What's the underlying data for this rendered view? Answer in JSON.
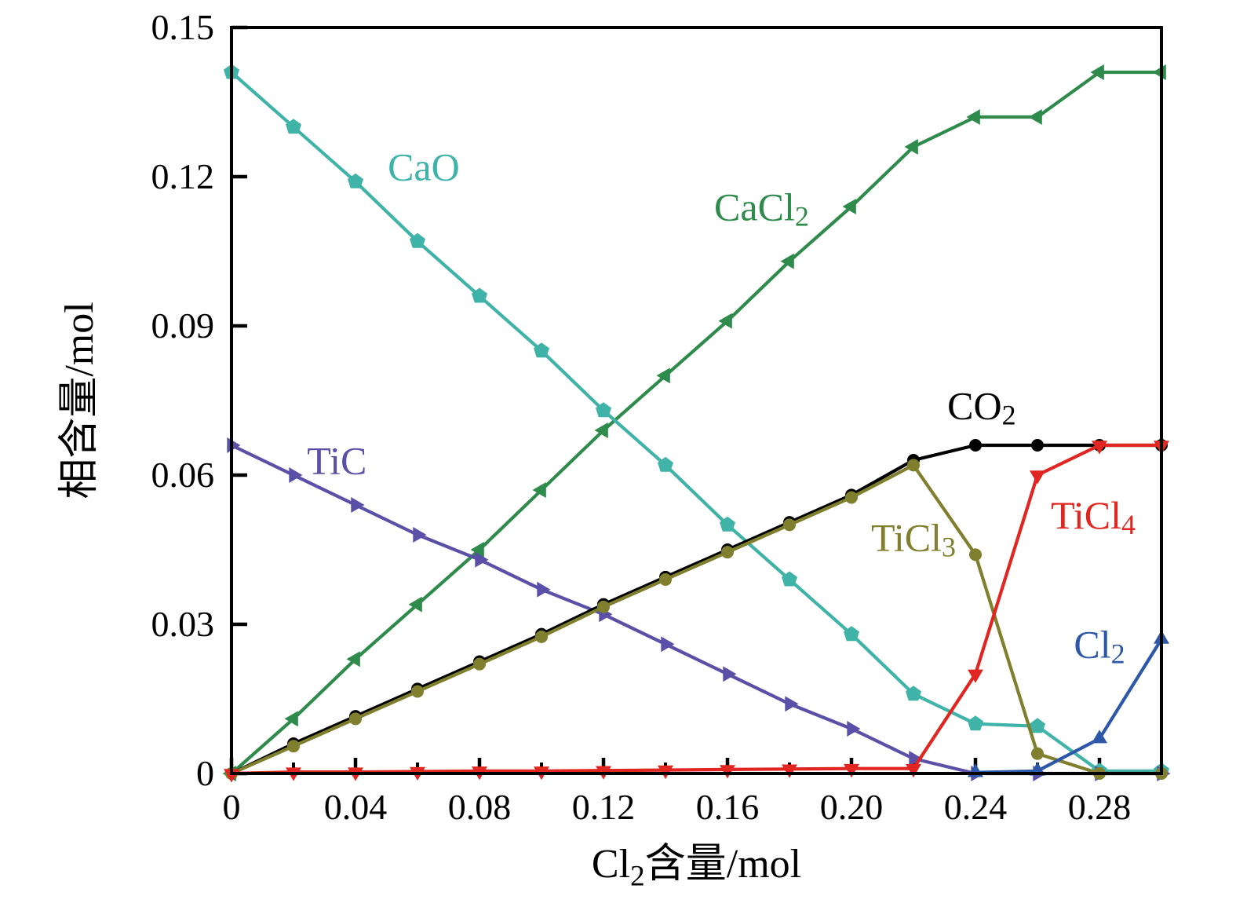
{
  "chart_data": {
    "type": "line",
    "title": "",
    "xlabel_parts": [
      {
        "t": "Cl"
      },
      {
        "t": "2",
        "sub": true
      },
      {
        "t": "含量/mol"
      }
    ],
    "ylabel": "相含量/mol",
    "xlim": [
      0,
      0.3
    ],
    "ylim": [
      0,
      0.15
    ],
    "grid": false,
    "legend": "inline-annotations",
    "x_ticks": [
      {
        "v": 0.0,
        "label": "0"
      },
      {
        "v": 0.04,
        "label": "0.04"
      },
      {
        "v": 0.08,
        "label": "0.08"
      },
      {
        "v": 0.12,
        "label": "0.12"
      },
      {
        "v": 0.16,
        "label": "0.16"
      },
      {
        "v": 0.2,
        "label": "0.20"
      },
      {
        "v": 0.24,
        "label": "0.24"
      },
      {
        "v": 0.28,
        "label": "0.28"
      }
    ],
    "x_minor_ticks": [
      0.02,
      0.06,
      0.1,
      0.14,
      0.18,
      0.22,
      0.26,
      0.3
    ],
    "y_ticks": [
      {
        "v": 0.0,
        "label": "0"
      },
      {
        "v": 0.03,
        "label": "0.03"
      },
      {
        "v": 0.06,
        "label": "0.06"
      },
      {
        "v": 0.09,
        "label": "0.09"
      },
      {
        "v": 0.12,
        "label": "0.12"
      },
      {
        "v": 0.15,
        "label": "0.15"
      }
    ],
    "x": [
      0.0,
      0.02,
      0.04,
      0.06,
      0.08,
      0.1,
      0.12,
      0.14,
      0.16,
      0.18,
      0.2,
      0.22,
      0.24,
      0.26,
      0.28,
      0.3
    ],
    "series": [
      {
        "name": "CaCl2",
        "label_parts": [
          {
            "t": "CaCl"
          },
          {
            "t": "2",
            "sub": true
          }
        ],
        "color": "#2e8b4b",
        "marker": "triangle-left",
        "values": [
          0.0,
          0.011,
          0.023,
          0.034,
          0.045,
          0.057,
          0.069,
          0.08,
          0.091,
          0.103,
          0.114,
          0.126,
          0.132,
          0.132,
          0.141,
          0.141
        ],
        "label_pos": [
          0.171,
          0.113
        ]
      },
      {
        "name": "CaO",
        "label_parts": [
          {
            "t": "CaO"
          }
        ],
        "color": "#40b3a8",
        "marker": "pentagon",
        "values": [
          0.141,
          0.13,
          0.119,
          0.107,
          0.096,
          0.085,
          0.073,
          0.062,
          0.05,
          0.039,
          0.028,
          0.016,
          0.01,
          0.0095,
          0.0005,
          0.0005
        ],
        "label_pos": [
          0.062,
          0.121
        ]
      },
      {
        "name": "TiC",
        "label_parts": [
          {
            "t": "TiC"
          }
        ],
        "color": "#5a50a8",
        "marker": "triangle-right",
        "values": [
          0.066,
          0.06,
          0.054,
          0.048,
          0.043,
          0.037,
          0.032,
          0.026,
          0.02,
          0.014,
          0.009,
          0.003,
          0.0,
          0.0,
          0.0,
          0.0
        ],
        "label_pos": [
          0.034,
          0.062
        ]
      },
      {
        "name": "CO2",
        "label_parts": [
          {
            "t": "CO"
          },
          {
            "t": "2",
            "sub": true
          }
        ],
        "color": "#000000",
        "marker": "circle",
        "values": [
          0.0,
          0.006,
          0.0115,
          0.017,
          0.0225,
          0.028,
          0.034,
          0.0395,
          0.045,
          0.0505,
          0.056,
          0.063,
          0.066,
          0.066,
          0.066,
          0.066
        ],
        "label_pos": [
          0.242,
          0.073
        ]
      },
      {
        "name": "TiCl3",
        "label_parts": [
          {
            "t": "TiCl"
          },
          {
            "t": "3",
            "sub": true
          }
        ],
        "color": "#7f7f2d",
        "marker": "circle",
        "values": [
          0.0,
          0.0055,
          0.011,
          0.0165,
          0.022,
          0.0275,
          0.0335,
          0.039,
          0.0445,
          0.05,
          0.0555,
          0.062,
          0.044,
          0.004,
          0.0,
          0.0
        ],
        "label_pos": [
          0.22,
          0.0465
        ]
      },
      {
        "name": "TiCl4",
        "label_parts": [
          {
            "t": "TiCl"
          },
          {
            "t": "4",
            "sub": true
          }
        ],
        "color": "#e12521",
        "marker": "triangle-down",
        "values": [
          0.0,
          0.0003,
          0.0003,
          0.0004,
          0.0005,
          0.0005,
          0.0006,
          0.0007,
          0.0008,
          0.0009,
          0.001,
          0.001,
          0.02,
          0.06,
          0.066,
          0.066
        ],
        "label_pos": [
          0.278,
          0.051
        ]
      },
      {
        "name": "Cl2",
        "label_parts": [
          {
            "t": "Cl"
          },
          {
            "t": "2",
            "sub": true
          }
        ],
        "color": "#2d57a8",
        "marker": "triangle-up",
        "x": [
          0.24,
          0.26,
          0.28,
          0.3
        ],
        "values": [
          0.0002,
          0.0005,
          0.007,
          0.027
        ],
        "label_pos": [
          0.28,
          0.025
        ]
      }
    ]
  }
}
